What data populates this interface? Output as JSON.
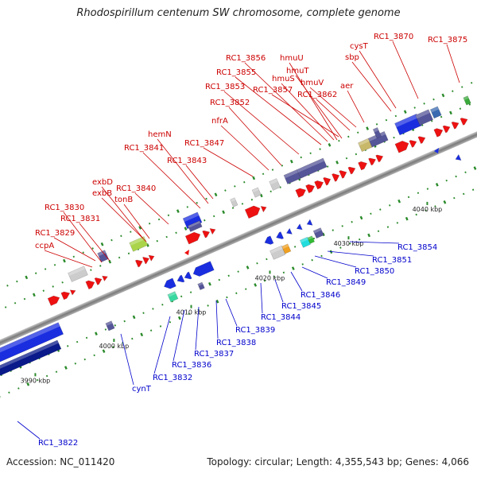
{
  "title": "Rhodospirillum centenum SW chromosome, complete genome",
  "footer": {
    "accession": "Accession: NC_011420",
    "summary": "Topology: circular; Length: 4,355,543 bp; Genes: 4,066"
  },
  "colors": {
    "forward_label": "#cc0000",
    "reverse_label": "#0000cc",
    "axis": "#8a8a8a",
    "forward_gene": "#ee1111",
    "reverse_gene": "#1a2ee0",
    "operon": "#555599",
    "tick_dot": "#2a8a2a"
  },
  "ticks": [
    "3990 kbp",
    "4000 kbp",
    "4010 kbp",
    "4020 kbp",
    "4030 kbp",
    "4040 kbp"
  ],
  "forward_labels": [
    "RC1_3829",
    "ccpA",
    "RC1_3830",
    "RC1_3831",
    "exbD",
    "exbB",
    "tonB",
    "RC1_3840",
    "hemN",
    "RC1_3841",
    "RC1_3843",
    "RC1_3847",
    "nfrA",
    "RC1_3852",
    "RC1_3853",
    "RC1_3855",
    "RC1_3856",
    "hmuU",
    "hmuT",
    "hmuS",
    "RC1_3857",
    "hmuV",
    "RC1_3862",
    "aer",
    "cysT",
    "sbp",
    "RC1_3870",
    "RC1_3875"
  ],
  "reverse_labels": [
    "RC1_3822",
    "cynT",
    "RC1_3832",
    "RC1_3836",
    "RC1_3837",
    "RC1_3838",
    "RC1_3839",
    "RC1_3844",
    "RC1_3845",
    "RC1_3846",
    "RC1_3849",
    "RC1_3850",
    "RC1_3851",
    "RC1_3854"
  ]
}
